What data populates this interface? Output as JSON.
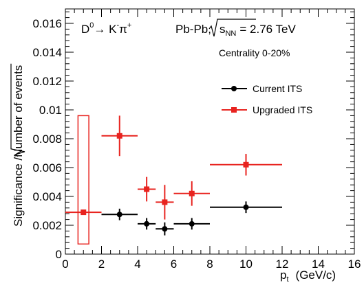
{
  "chart_data": {
    "type": "scatter",
    "xlabel": "p_t (GeV/c)",
    "xlabel_main": "p",
    "xlabel_sub": "t",
    "xlabel_unit": "(GeV/c)",
    "ylabel": "Significance /√Number of events",
    "ylabel_prefix": "Significance /",
    "ylabel_radicand": "Number of events",
    "xlim": [
      0,
      16
    ],
    "ylim": [
      0,
      0.017
    ],
    "xticks": [
      0,
      2,
      4,
      6,
      8,
      10,
      12,
      14,
      16
    ],
    "xtick_labels": [
      "0",
      "2",
      "4",
      "6",
      "8",
      "10",
      "12",
      "14",
      "16"
    ],
    "yticks": [
      0,
      0.002,
      0.004,
      0.006,
      0.008,
      0.01,
      0.012,
      0.014,
      0.016
    ],
    "ytick_labels": [
      "0",
      "0.002",
      "0.004",
      "0.006",
      "0.008",
      "0.01",
      "0.012",
      "0.014",
      "0.016"
    ],
    "grid": false,
    "legend_position": "right",
    "annotations": {
      "decay": {
        "D": "D",
        "D_sup": "0",
        "arrow": "→ K",
        "K_sup": "-",
        "pi": "π",
        "pi_sup": "+"
      },
      "system": {
        "prefix": "Pb-Pb,",
        "s": "s",
        "s_sub": "NN",
        "suffix": "= 2.76 TeV"
      },
      "centrality": "Centrality 0-20%"
    },
    "series": [
      {
        "name": "Current ITS",
        "color": "#000000",
        "marker": "circle",
        "points": [
          {
            "x": 3.0,
            "xlo": 2.0,
            "xhi": 4.0,
            "y": 0.00275,
            "yerr": 0.0004
          },
          {
            "x": 4.5,
            "xlo": 4.0,
            "xhi": 5.0,
            "y": 0.0021,
            "yerr": 0.0004
          },
          {
            "x": 5.5,
            "xlo": 5.0,
            "xhi": 6.0,
            "y": 0.00175,
            "yerr": 0.00045
          },
          {
            "x": 7.0,
            "xlo": 6.0,
            "xhi": 8.0,
            "y": 0.0021,
            "yerr": 0.0004
          },
          {
            "x": 10.0,
            "xlo": 8.0,
            "xhi": 12.0,
            "y": 0.00325,
            "yerr": 0.0004
          }
        ]
      },
      {
        "name": "Upgraded ITS",
        "color": "#e8231f",
        "marker": "square",
        "points": [
          {
            "x": 1.0,
            "xlo": 0.0,
            "xhi": 2.0,
            "y": 0.0029,
            "yerr": 0.0
          },
          {
            "x": 3.0,
            "xlo": 2.0,
            "xhi": 4.0,
            "y": 0.0082,
            "yerr": 0.0014
          },
          {
            "x": 4.5,
            "xlo": 4.0,
            "xhi": 5.0,
            "y": 0.0045,
            "yerr": 0.00085
          },
          {
            "x": 5.5,
            "xlo": 5.0,
            "xhi": 6.0,
            "y": 0.0036,
            "yerr": 0.0012
          },
          {
            "x": 7.0,
            "xlo": 6.0,
            "xhi": 8.0,
            "y": 0.0042,
            "yerr": 0.00085
          },
          {
            "x": 10.0,
            "xlo": 8.0,
            "xhi": 12.0,
            "y": 0.0062,
            "yerr": 0.00075
          }
        ]
      }
    ],
    "systematic_boxes": [
      {
        "series": "Upgraded ITS",
        "x": 1.0,
        "xlo": 0.7,
        "xhi": 1.3,
        "ylo": 0.0007,
        "yhi": 0.0096
      }
    ]
  }
}
